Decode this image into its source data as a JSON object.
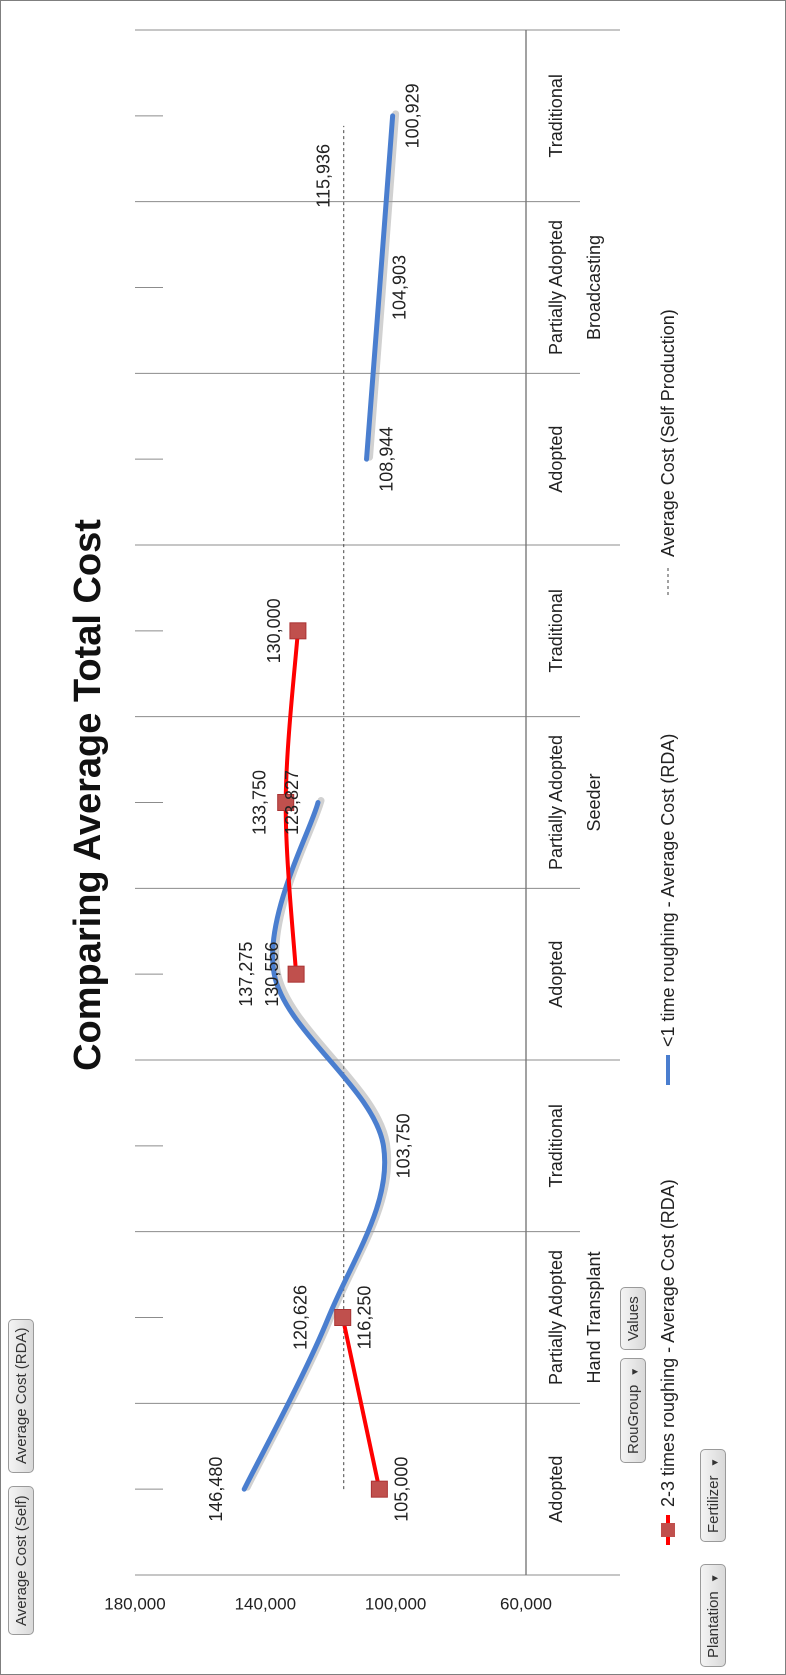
{
  "chart_data": {
    "type": "line",
    "title": "Comparing Average Total Cost",
    "groups": [
      {
        "name": "Hand Transplant",
        "categories": [
          "Adopted",
          "Partially Adopted",
          "Traditional"
        ]
      },
      {
        "name": "Seeder",
        "categories": [
          "Adopted",
          "Partially Adopted",
          "Traditional"
        ]
      },
      {
        "name": "Broadcasting",
        "categories": [
          "Adopted",
          "Partially Adopted",
          "Traditional"
        ]
      }
    ],
    "y_ticks": [
      "180,000",
      "140,000",
      "100,000",
      "60,000"
    ],
    "ylim": [
      60000,
      180000
    ],
    "series": [
      {
        "name": "<1 time roughing - Average Cost (RDA)",
        "color": "#4a7ecf",
        "style": "smooth-line",
        "values": [
          146480,
          120626,
          103750,
          137275,
          123827,
          null,
          108944,
          104903,
          100929
        ],
        "labels": [
          "146,480",
          "120,626",
          "103,750",
          "137,275",
          "123,827",
          "",
          "108,944",
          "104,903",
          "100,929"
        ]
      },
      {
        "name": "2-3 times roughing - Average Cost (RDA)",
        "color": "#ff0000",
        "marker_color": "#c0504d",
        "style": "line-square-marker",
        "values": [
          105000,
          116250,
          null,
          130556,
          133750,
          130000,
          null,
          null,
          null
        ],
        "labels": [
          "105,000",
          "116,250",
          "",
          "130,556",
          "133,750",
          "130,000",
          "",
          "",
          ""
        ]
      },
      {
        "name": "Average Cost (Self Production)",
        "color": "#444444",
        "style": "dashed-reference",
        "value": 115936,
        "label": "115,936"
      }
    ],
    "legend_position": "bottom"
  },
  "controls": {
    "average_cost_self": "Average Cost (Self)",
    "average_cost_rda": "Average Cost (RDA)",
    "rougroup": "RouGroup",
    "values": "Values",
    "plantation": "Plantation",
    "fertilizer": "Fertilizer",
    "dropdown_arrow": "▼"
  }
}
